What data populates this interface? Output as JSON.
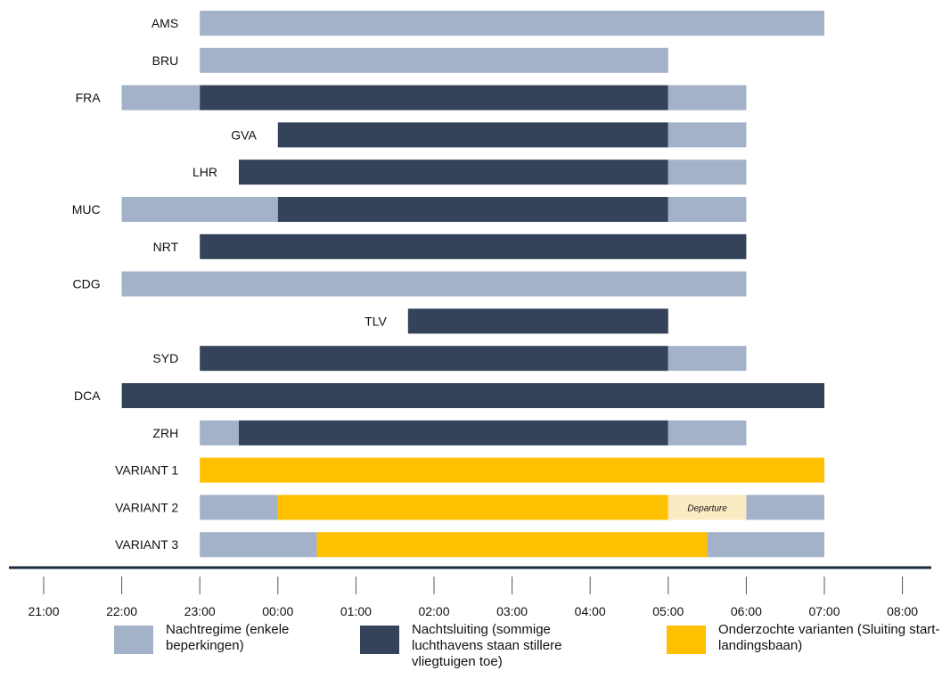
{
  "colors": {
    "nachtregime": "#A3B1C9",
    "nachtsluiting": "#34435A",
    "varianten": "#FFC000",
    "departure": "#FBEBC2",
    "axis": "#1C2B3F"
  },
  "chart_data": {
    "type": "gantt",
    "xaxis": {
      "ticks": [
        "21:00",
        "22:00",
        "23:00",
        "00:00",
        "01:00",
        "02:00",
        "03:00",
        "04:00",
        "05:00",
        "06:00",
        "07:00",
        "08:00"
      ],
      "range": [
        "21:00",
        "08:00"
      ]
    },
    "rows": [
      {
        "label": "AMS",
        "segments": [
          {
            "start": "23:00",
            "end": "07:00",
            "type": "nachtregime"
          }
        ]
      },
      {
        "label": "BRU",
        "segments": [
          {
            "start": "23:00",
            "end": "05:00",
            "type": "nachtregime"
          }
        ]
      },
      {
        "label": "FRA",
        "segments": [
          {
            "start": "22:00",
            "end": "23:00",
            "type": "nachtregime"
          },
          {
            "start": "23:00",
            "end": "05:00",
            "type": "nachtsluiting"
          },
          {
            "start": "05:00",
            "end": "06:00",
            "type": "nachtregime"
          }
        ]
      },
      {
        "label": "GVA",
        "segments": [
          {
            "start": "00:00",
            "end": "05:00",
            "type": "nachtsluiting"
          },
          {
            "start": "05:00",
            "end": "06:00",
            "type": "nachtregime"
          }
        ]
      },
      {
        "label": "LHR",
        "segments": [
          {
            "start": "23:30",
            "end": "05:00",
            "type": "nachtsluiting"
          },
          {
            "start": "05:00",
            "end": "06:00",
            "type": "nachtregime"
          }
        ]
      },
      {
        "label": "MUC",
        "segments": [
          {
            "start": "22:00",
            "end": "00:00",
            "type": "nachtregime"
          },
          {
            "start": "00:00",
            "end": "05:00",
            "type": "nachtsluiting"
          },
          {
            "start": "05:00",
            "end": "06:00",
            "type": "nachtregime"
          }
        ]
      },
      {
        "label": "NRT",
        "segments": [
          {
            "start": "23:00",
            "end": "06:00",
            "type": "nachtsluiting"
          }
        ]
      },
      {
        "label": "CDG",
        "segments": [
          {
            "start": "22:00",
            "end": "06:00",
            "type": "nachtregime"
          }
        ]
      },
      {
        "label": "TLV",
        "segments": [
          {
            "start": "01:40",
            "end": "05:00",
            "type": "nachtsluiting"
          }
        ]
      },
      {
        "label": "SYD",
        "segments": [
          {
            "start": "23:00",
            "end": "05:00",
            "type": "nachtsluiting"
          },
          {
            "start": "05:00",
            "end": "06:00",
            "type": "nachtregime"
          }
        ]
      },
      {
        "label": "DCA",
        "segments": [
          {
            "start": "22:00",
            "end": "07:00",
            "type": "nachtsluiting"
          }
        ]
      },
      {
        "label": "ZRH",
        "segments": [
          {
            "start": "23:00",
            "end": "23:30",
            "type": "nachtregime"
          },
          {
            "start": "23:30",
            "end": "05:00",
            "type": "nachtsluiting"
          },
          {
            "start": "05:00",
            "end": "06:00",
            "type": "nachtregime"
          }
        ]
      },
      {
        "label": "VARIANT 1",
        "segments": [
          {
            "start": "23:00",
            "end": "07:00",
            "type": "varianten"
          }
        ]
      },
      {
        "label": "VARIANT 2",
        "segments": [
          {
            "start": "23:00",
            "end": "00:00",
            "type": "nachtregime"
          },
          {
            "start": "00:00",
            "end": "05:00",
            "type": "varianten"
          },
          {
            "start": "05:00",
            "end": "06:00",
            "type": "departure",
            "text": "Departure"
          },
          {
            "start": "06:00",
            "end": "07:00",
            "type": "nachtregime"
          }
        ]
      },
      {
        "label": "VARIANT 3",
        "segments": [
          {
            "start": "23:00",
            "end": "00:30",
            "type": "nachtregime"
          },
          {
            "start": "00:30",
            "end": "05:30",
            "type": "varianten"
          },
          {
            "start": "05:30",
            "end": "07:00",
            "type": "nachtregime"
          }
        ]
      }
    ],
    "legend": [
      {
        "type": "nachtregime",
        "text": "Nachtregime (enkele beperkingen)"
      },
      {
        "type": "nachtsluiting",
        "text": "Nachtsluiting (sommige luchthavens staan stillere vliegtuigen toe)"
      },
      {
        "type": "varianten",
        "text": "Onderzochte varianten (Sluiting start- en landingsbaan)"
      }
    ]
  }
}
